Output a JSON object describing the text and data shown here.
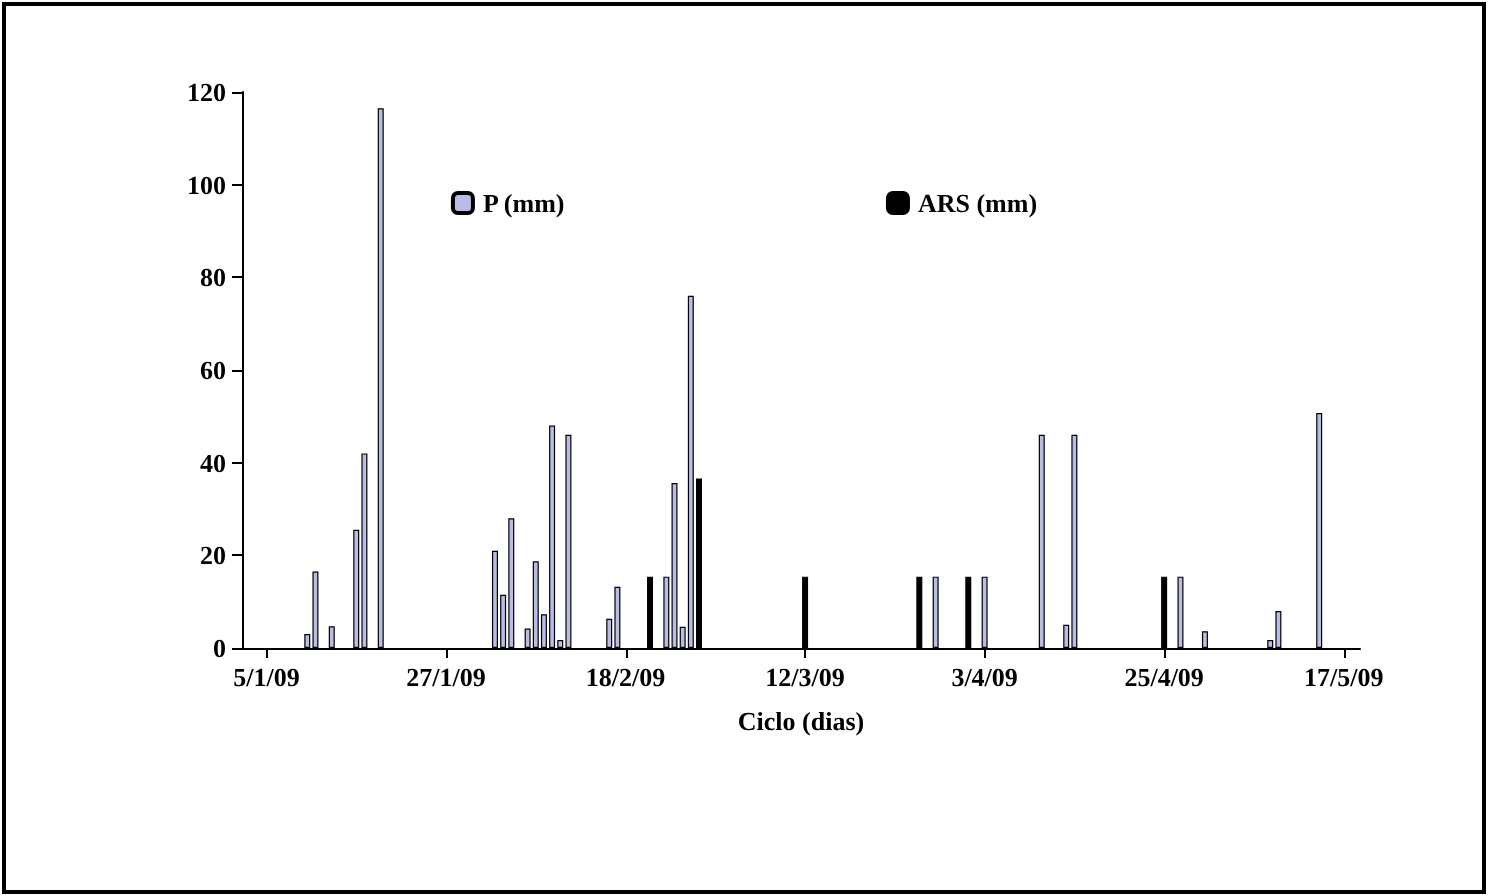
{
  "chart_data": {
    "type": "bar",
    "xlabel": "Ciclo (dias)",
    "legend": "top",
    "xlim": [
      "2009-01-02",
      "2009-05-19"
    ],
    "xticks": [
      {
        "value": "2009-01-05",
        "label": "5/1/09"
      },
      {
        "value": "2009-01-27",
        "label": "27/1/09"
      },
      {
        "value": "2009-02-18",
        "label": "18/2/09"
      },
      {
        "value": "2009-03-12",
        "label": "12/3/09"
      },
      {
        "value": "2009-04-03",
        "label": "3/4/09"
      },
      {
        "value": "2009-04-25",
        "label": "25/4/09"
      },
      {
        "value": "2009-05-17",
        "label": "17/5/09"
      }
    ],
    "ylim": [
      0,
      120
    ],
    "yticks": [
      0,
      20,
      40,
      60,
      80,
      100,
      120
    ],
    "grid": false,
    "series": [
      {
        "name": "P (mm)",
        "color": "#b9bde6",
        "x": [
          "2009-01-10",
          "2009-01-11",
          "2009-01-13",
          "2009-01-16",
          "2009-01-17",
          "2009-01-19",
          "2009-02-02",
          "2009-02-03",
          "2009-02-04",
          "2009-02-06",
          "2009-02-07",
          "2009-02-08",
          "2009-02-09",
          "2009-02-10",
          "2009-02-11",
          "2009-02-16",
          "2009-02-17",
          "2009-02-23",
          "2009-02-24",
          "2009-02-25",
          "2009-02-26",
          "2009-03-28",
          "2009-04-03",
          "2009-04-10",
          "2009-04-13",
          "2009-04-14",
          "2009-04-27",
          "2009-04-30",
          "2009-05-08",
          "2009-05-09",
          "2009-05-14"
        ],
        "values": [
          3,
          16.5,
          4.7,
          25.5,
          42,
          116.5,
          21,
          11.5,
          28,
          4.2,
          18.7,
          7.3,
          48,
          1.7,
          46,
          6.3,
          13.2,
          15.4,
          35.6,
          4.6,
          76,
          15.4,
          15.4,
          46,
          5,
          46,
          15.4,
          3.6,
          1.7,
          8,
          50.7
        ]
      },
      {
        "name": "ARS (mm)",
        "color": "#000000",
        "x": [
          "2009-02-21",
          "2009-02-27",
          "2009-03-12",
          "2009-03-26",
          "2009-04-01",
          "2009-04-25"
        ],
        "values": [
          15.4,
          36.6,
          15.4,
          15.4,
          15.4,
          15.4
        ]
      }
    ]
  }
}
